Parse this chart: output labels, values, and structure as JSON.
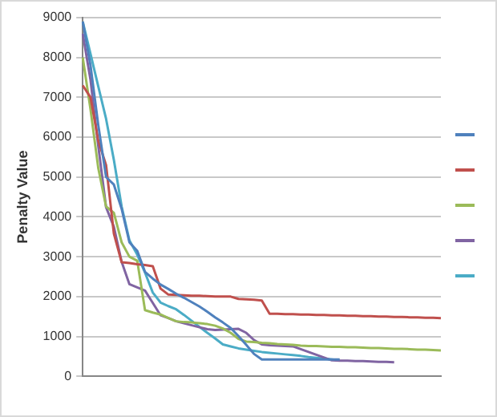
{
  "chart_data": {
    "type": "line",
    "ylabel": "Penalty Value",
    "categories": [
      null,
      null,
      null,
      null,
      null,
      null,
      null,
      null,
      null,
      null,
      null,
      null,
      null,
      null,
      null,
      null,
      null,
      null,
      null,
      null,
      null,
      null,
      null,
      null,
      null,
      null,
      null,
      null,
      null,
      null,
      null,
      null,
      null,
      null,
      null,
      null,
      null,
      null,
      null,
      null,
      null,
      null,
      null,
      null,
      null,
      null,
      null
    ],
    "series": [
      {
        "color": "#4f81bd",
        "values": [
          8900,
          7800,
          6300,
          5000,
          4810,
          4200,
          3360,
          3150,
          2620,
          2450,
          2300,
          2190,
          2070,
          1970,
          1860,
          1750,
          1620,
          1480,
          1350,
          1210,
          1010,
          790,
          560,
          420,
          420,
          420,
          420,
          420,
          420,
          420,
          420,
          420,
          420,
          420,
          null,
          null,
          null,
          null,
          null,
          null,
          null,
          null,
          null,
          null,
          null,
          null,
          null
        ]
      },
      {
        "color": "#c0504d",
        "values": [
          7300,
          7000,
          5910,
          5300,
          3580,
          2860,
          2840,
          2810,
          2790,
          2760,
          2200,
          2050,
          2040,
          2030,
          2020,
          2020,
          2010,
          2000,
          2000,
          2000,
          1940,
          1930,
          1920,
          1900,
          1570,
          1570,
          1560,
          1560,
          1550,
          1550,
          1540,
          1540,
          1530,
          1530,
          1520,
          1520,
          1510,
          1510,
          1500,
          1500,
          1490,
          1490,
          1480,
          1480,
          1470,
          1470,
          1460
        ]
      },
      {
        "color": "#9bbb59",
        "values": [
          8000,
          6700,
          5220,
          4260,
          4100,
          3360,
          3000,
          2900,
          1660,
          1600,
          1550,
          1460,
          1380,
          1360,
          1350,
          1330,
          1310,
          1270,
          1200,
          1090,
          940,
          870,
          860,
          840,
          830,
          810,
          800,
          790,
          770,
          760,
          760,
          750,
          740,
          740,
          730,
          730,
          720,
          710,
          710,
          700,
          690,
          690,
          680,
          670,
          670,
          660,
          650
        ]
      },
      {
        "color": "#8064a2",
        "values": [
          8600,
          7440,
          5780,
          4240,
          3750,
          2870,
          2310,
          2230,
          2150,
          1840,
          1530,
          1460,
          1380,
          1330,
          1280,
          1230,
          1180,
          1160,
          1170,
          1180,
          1190,
          1090,
          910,
          800,
          780,
          770,
          760,
          750,
          680,
          610,
          540,
          470,
          400,
          390,
          390,
          380,
          380,
          370,
          360,
          360,
          350,
          null,
          null,
          null,
          null,
          null,
          null
        ]
      },
      {
        "color": "#4bacc6",
        "values": [
          8900,
          8090,
          7270,
          6460,
          5430,
          4260,
          3410,
          3050,
          2600,
          2100,
          1850,
          1760,
          1680,
          1540,
          1390,
          1240,
          1090,
          950,
          800,
          750,
          700,
          670,
          640,
          610,
          590,
          570,
          550,
          530,
          510,
          480,
          460,
          440,
          420,
          400,
          null,
          null,
          null,
          null,
          null,
          null,
          null,
          null,
          null,
          null,
          null,
          null,
          null
        ]
      }
    ],
    "ylim": [
      0,
      9000
    ],
    "yticks": [
      0,
      1000,
      2000,
      3000,
      4000,
      5000,
      6000,
      7000,
      8000,
      9000
    ],
    "grid": "y",
    "marker": "none",
    "line_style": "solid"
  }
}
